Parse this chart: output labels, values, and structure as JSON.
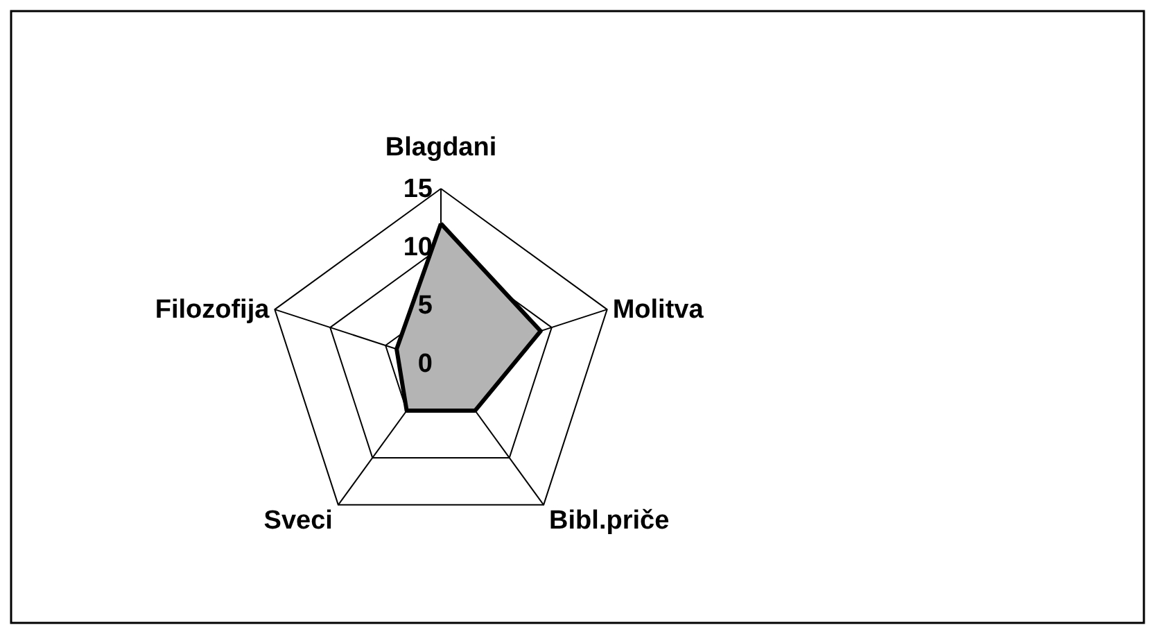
{
  "chart_data": {
    "type": "radar",
    "categories": [
      "Blagdani",
      "Molitva",
      "Bibl.priče",
      "Sveci",
      "Filozofija"
    ],
    "series": [
      {
        "color": "#b4b4b4",
        "values": [
          12,
          9,
          5,
          5,
          4
        ]
      }
    ],
    "ylim": [
      0,
      15
    ],
    "yticks": [
      0,
      5,
      10,
      15
    ],
    "grid": true,
    "legend": false
  }
}
